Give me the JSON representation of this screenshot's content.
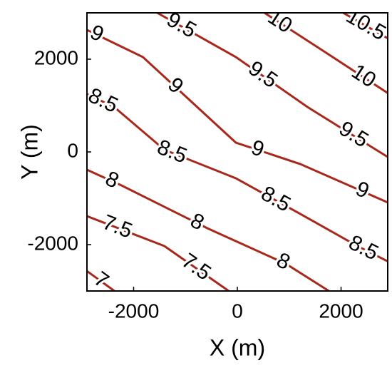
{
  "chart_data": {
    "type": "contour",
    "xlabel": "X (m)",
    "ylabel": "Y (m)",
    "xlim": [
      -2900,
      2900
    ],
    "ylim": [
      -3000,
      3000
    ],
    "xticks": [
      -2000,
      0,
      2000
    ],
    "yticks": [
      -2000,
      0,
      2000
    ],
    "color": "#a8281c",
    "series": [
      {
        "level": 7,
        "x": [
          -2900,
          -2370
        ],
        "y": [
          -2570,
          -3000
        ]
      },
      {
        "level": 7.5,
        "x": [
          -2900,
          -1407,
          -166
        ],
        "y": [
          -1385,
          -2031,
          -3000
        ]
      },
      {
        "level": 8,
        "x": [
          -2900,
          -2234,
          -579,
          938,
          1766
        ],
        "y": [
          -385,
          -723,
          -1646,
          -2415,
          -3000
        ]
      },
      {
        "level": 8.5,
        "x": [
          -2900,
          -2376,
          -1407,
          -28,
          1214,
          2317,
          2900
        ],
        "y": [
          1246,
          969,
          46,
          -569,
          -1338,
          -2031,
          -2360
        ]
      },
      {
        "level": 9,
        "x": [
          -2900,
          -1821,
          -28,
          1214,
          2900
        ],
        "y": [
          2631,
          2046,
          200,
          -262,
          -1090
        ]
      },
      {
        "level": 9.5,
        "x": [
          -1545,
          -28,
          1352,
          2900
        ],
        "y": [
          3000,
          2046,
          969,
          -110
        ]
      },
      {
        "level": 10,
        "x": [
          524,
          1628,
          2900
        ],
        "y": [
          3000,
          2200,
          1270
        ]
      },
      {
        "level": 10.5,
        "x": [
          2041,
          2900
        ],
        "y": [
          3000,
          2450
        ]
      }
    ]
  }
}
